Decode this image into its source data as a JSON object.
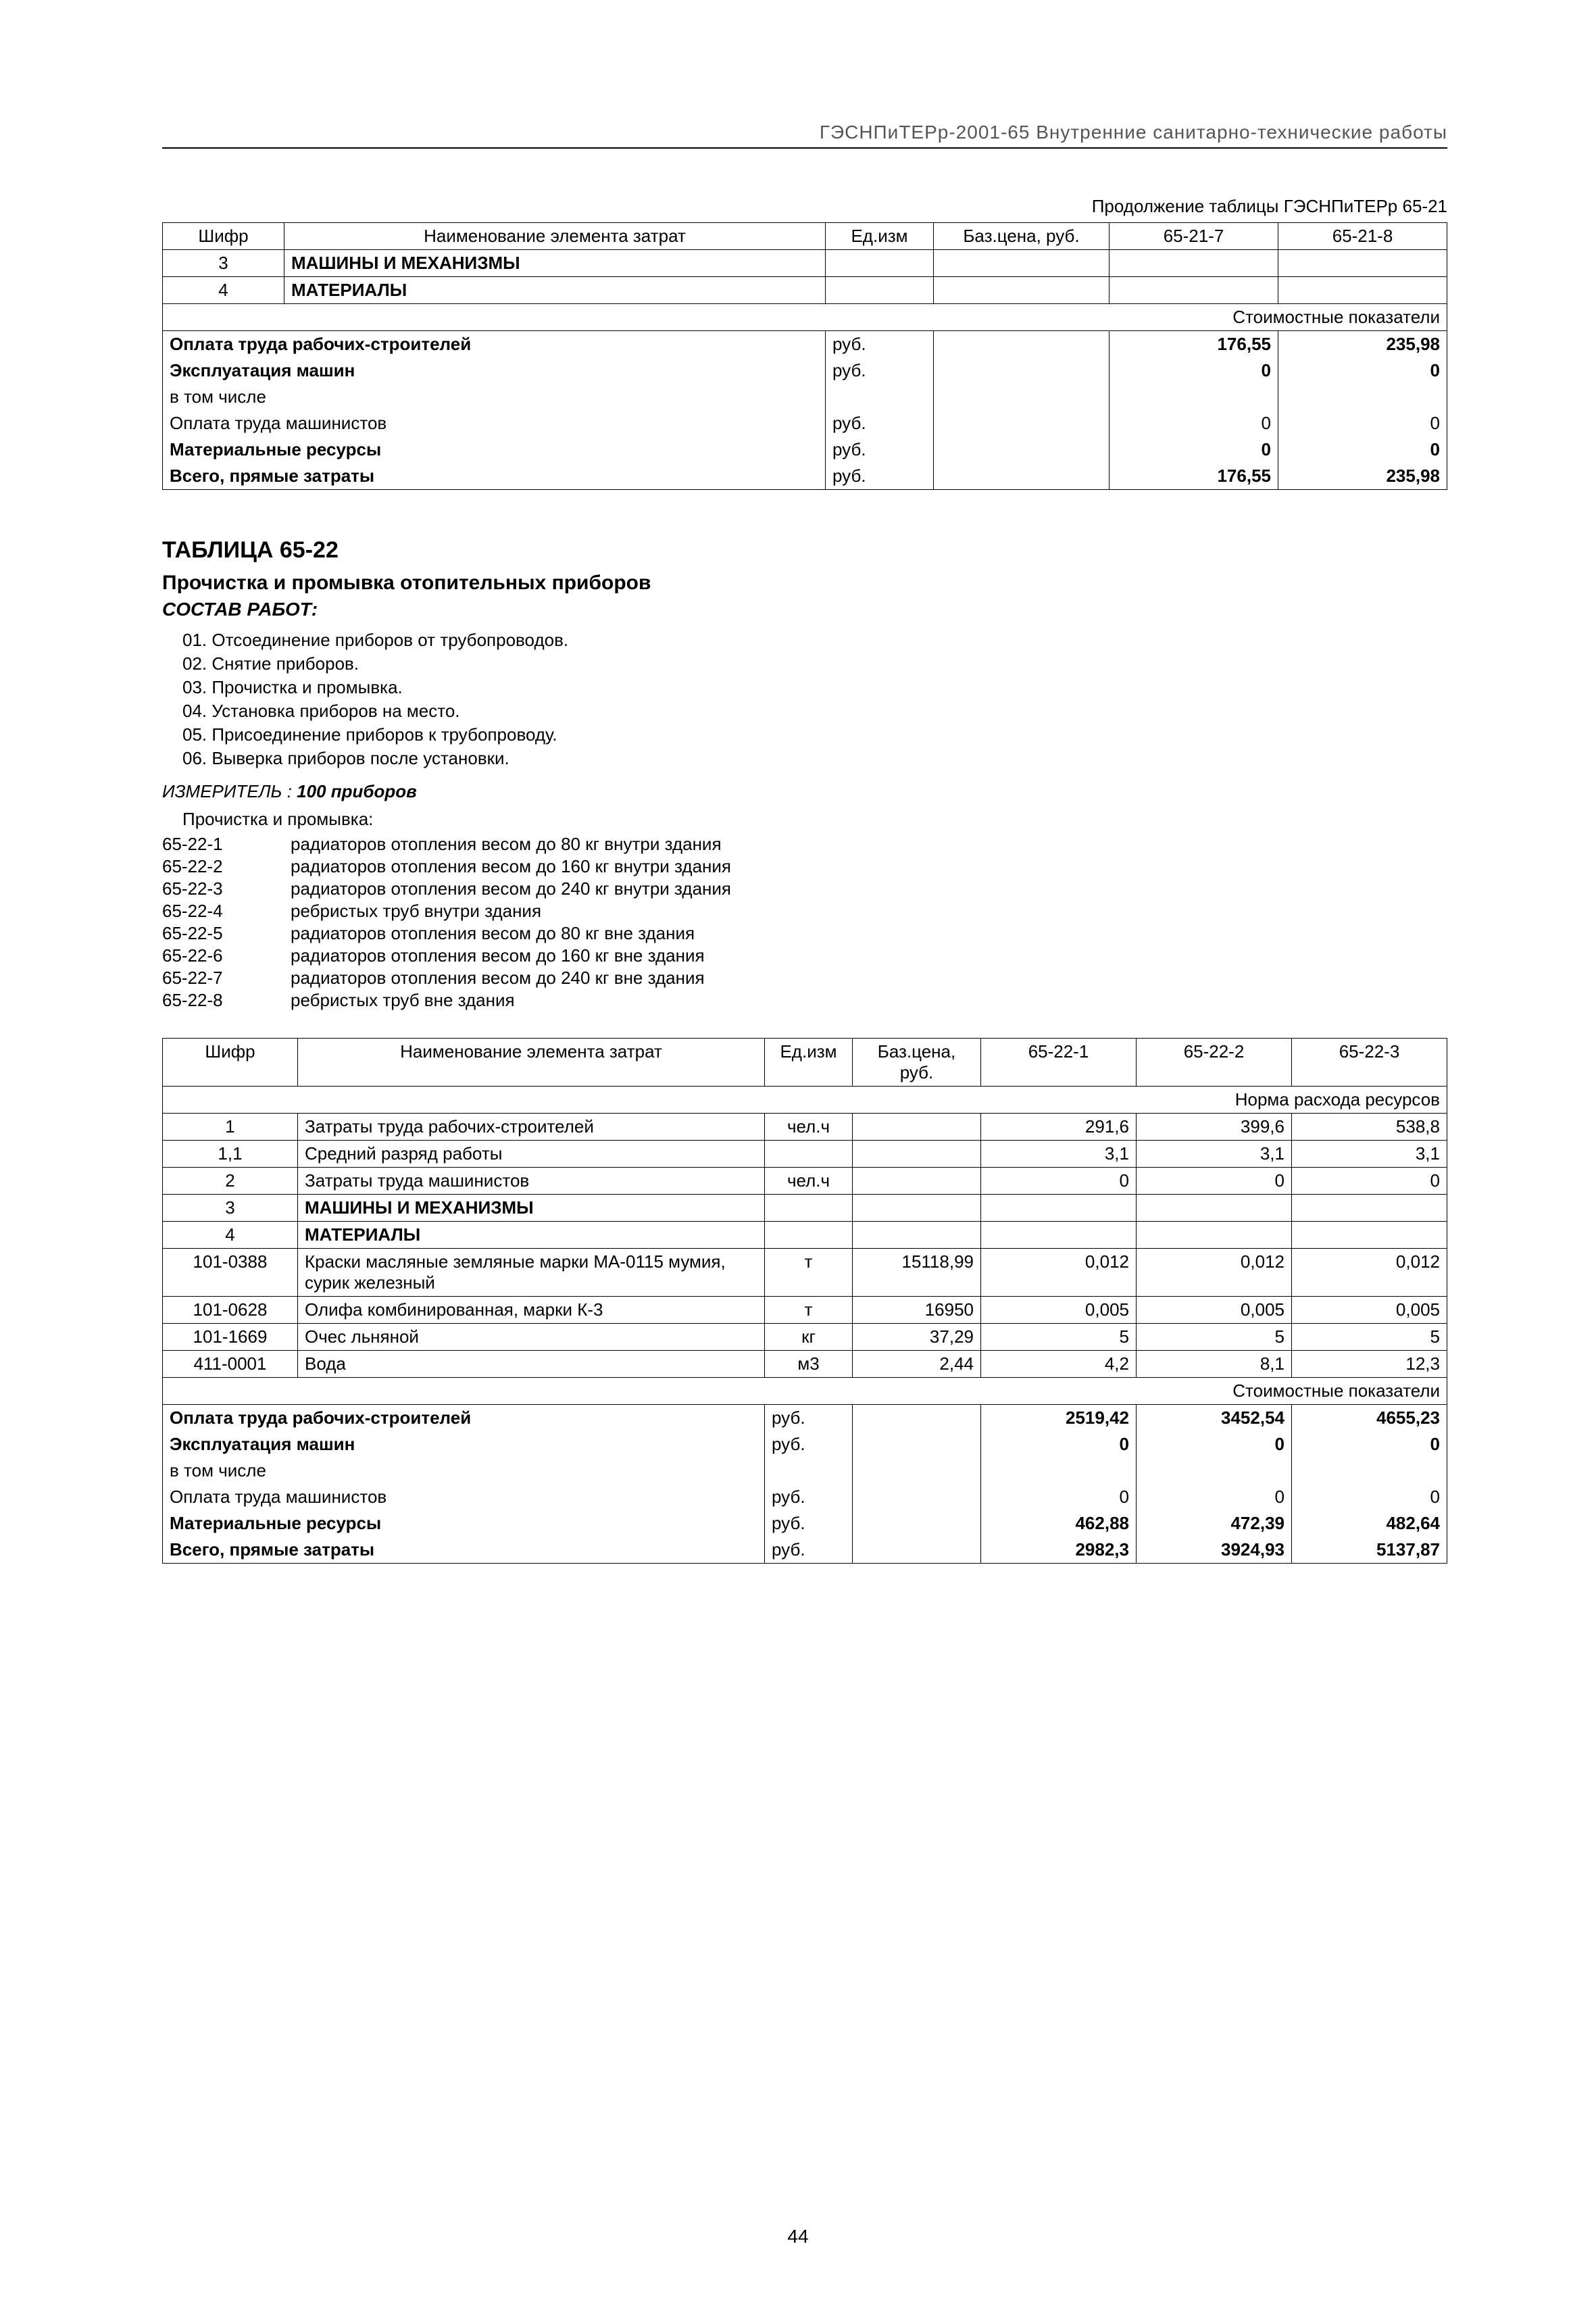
{
  "header": "ГЭСНПиТЕРр-2001-65 Внутренние санитарно-технические работы",
  "table1": {
    "continuation": "Продолжение таблицы ГЭСНПиТЕРр 65-21",
    "columns": [
      "Шифр",
      "Наименование элемента затрат",
      "Ед.изм",
      "Баз.цена, руб.",
      "65-21-7",
      "65-21-8"
    ],
    "rows_top": [
      {
        "c0": "3",
        "c1": "МАШИНЫ И МЕХАНИЗМЫ",
        "bold": true
      },
      {
        "c0": "4",
        "c1": "МАТЕРИАЛЫ",
        "bold": true
      }
    ],
    "cost_label": "Стоимостные показатели",
    "cost_rows": [
      {
        "label": "Оплата труда рабочих-строителей",
        "unit": "руб.",
        "v1": "176,55",
        "v2": "235,98",
        "bold": true
      },
      {
        "label": "Эксплуатация машин",
        "unit": "руб.",
        "v1": "0",
        "v2": "0",
        "bold": true
      },
      {
        "label": "в том числе",
        "unit": "",
        "v1": "",
        "v2": "",
        "bold": false
      },
      {
        "label": "Оплата труда машинистов",
        "unit": "руб.",
        "v1": "0",
        "v2": "0",
        "bold": false
      },
      {
        "label": "Материальные ресурсы",
        "unit": "руб.",
        "v1": "0",
        "v2": "0",
        "bold": true
      },
      {
        "label": "Всего, прямые затраты",
        "unit": "руб.",
        "v1": "176,55",
        "v2": "235,98",
        "bold": true
      }
    ]
  },
  "section": {
    "title": "ТАБЛИЦА 65-22",
    "subtitle": "Прочистка и промывка отопительных приборов",
    "sostav": "СОСТАВ РАБОТ:",
    "works": [
      "01. Отсоединение приборов от трубопроводов.",
      "02. Снятие приборов.",
      "03. Прочистка и промывка.",
      "04. Установка приборов на место.",
      "05. Присоединение приборов к трубопроводу.",
      "06. Выверка приборов после установки."
    ],
    "izmer_label": "ИЗМЕРИТЕЛЬ :",
    "izmer_value": "100 приборов",
    "list_intro": "Прочистка и промывка:",
    "codes": [
      {
        "code": "65-22-1",
        "text": "радиаторов отопления весом до 80 кг внутри здания"
      },
      {
        "code": "65-22-2",
        "text": "радиаторов отопления весом до 160 кг внутри здания"
      },
      {
        "code": "65-22-3",
        "text": "радиаторов отопления весом до 240 кг внутри здания"
      },
      {
        "code": "65-22-4",
        "text": "ребристых труб внутри здания"
      },
      {
        "code": "65-22-5",
        "text": "радиаторов отопления весом до 80 кг вне здания"
      },
      {
        "code": "65-22-6",
        "text": "радиаторов отопления весом до 160 кг вне здания"
      },
      {
        "code": "65-22-7",
        "text": "радиаторов отопления весом до 240 кг вне здания"
      },
      {
        "code": "65-22-8",
        "text": "ребристых труб вне здания"
      }
    ]
  },
  "table2": {
    "columns": [
      "Шифр",
      "Наименование элемента затрат",
      "Ед.изм",
      "Баз.цена, руб.",
      "65-22-1",
      "65-22-2",
      "65-22-3"
    ],
    "norm_label": "Норма расхода ресурсов",
    "cost_label": "Стоимостные показатели",
    "rows": [
      {
        "c0": "1",
        "c1": "Затраты труда рабочих-строителей",
        "c2": "чел.ч",
        "c3": "",
        "c4": "291,6",
        "c5": "399,6",
        "c6": "538,8"
      },
      {
        "c0": "1,1",
        "c1": "Средний разряд работы",
        "c2": "",
        "c3": "",
        "c4": "3,1",
        "c5": "3,1",
        "c6": "3,1"
      },
      {
        "c0": "2",
        "c1": "Затраты труда машинистов",
        "c2": "чел.ч",
        "c3": "",
        "c4": "0",
        "c5": "0",
        "c6": "0"
      },
      {
        "c0": "3",
        "c1": "МАШИНЫ И МЕХАНИЗМЫ",
        "bold": true,
        "c2": "",
        "c3": "",
        "c4": "",
        "c5": "",
        "c6": ""
      },
      {
        "c0": "4",
        "c1": "МАТЕРИАЛЫ",
        "bold": true,
        "c2": "",
        "c3": "",
        "c4": "",
        "c5": "",
        "c6": ""
      },
      {
        "c0": "101-0388",
        "c1": "Краски масляные земляные марки МА-0115 мумия, сурик железный",
        "c2": "т",
        "c3": "15118,99",
        "c4": "0,012",
        "c5": "0,012",
        "c6": "0,012"
      },
      {
        "c0": "101-0628",
        "c1": "Олифа комбинированная, марки К-3",
        "c2": "т",
        "c3": "16950",
        "c4": "0,005",
        "c5": "0,005",
        "c6": "0,005"
      },
      {
        "c0": "101-1669",
        "c1": "Очес льняной",
        "c2": "кг",
        "c3": "37,29",
        "c4": "5",
        "c5": "5",
        "c6": "5"
      },
      {
        "c0": "411-0001",
        "c1": "Вода",
        "c2": "м3",
        "c3": "2,44",
        "c4": "4,2",
        "c5": "8,1",
        "c6": "12,3"
      }
    ],
    "cost_rows": [
      {
        "label": "Оплата труда рабочих-строителей",
        "unit": "руб.",
        "v1": "2519,42",
        "v2": "3452,54",
        "v3": "4655,23",
        "bold": true
      },
      {
        "label": "Эксплуатация машин",
        "unit": "руб.",
        "v1": "0",
        "v2": "0",
        "v3": "0",
        "bold": true
      },
      {
        "label": "в том числе",
        "unit": "",
        "v1": "",
        "v2": "",
        "v3": "",
        "bold": false
      },
      {
        "label": "Оплата труда машинистов",
        "unit": "руб.",
        "v1": "0",
        "v2": "0",
        "v3": "0",
        "bold": false
      },
      {
        "label": "Материальные ресурсы",
        "unit": "руб.",
        "v1": "462,88",
        "v2": "472,39",
        "v3": "482,64",
        "bold": true
      },
      {
        "label": "Всего, прямые затраты",
        "unit": "руб.",
        "v1": "2982,3",
        "v2": "3924,93",
        "v3": "5137,87",
        "bold": true
      }
    ]
  },
  "page_number": "44"
}
